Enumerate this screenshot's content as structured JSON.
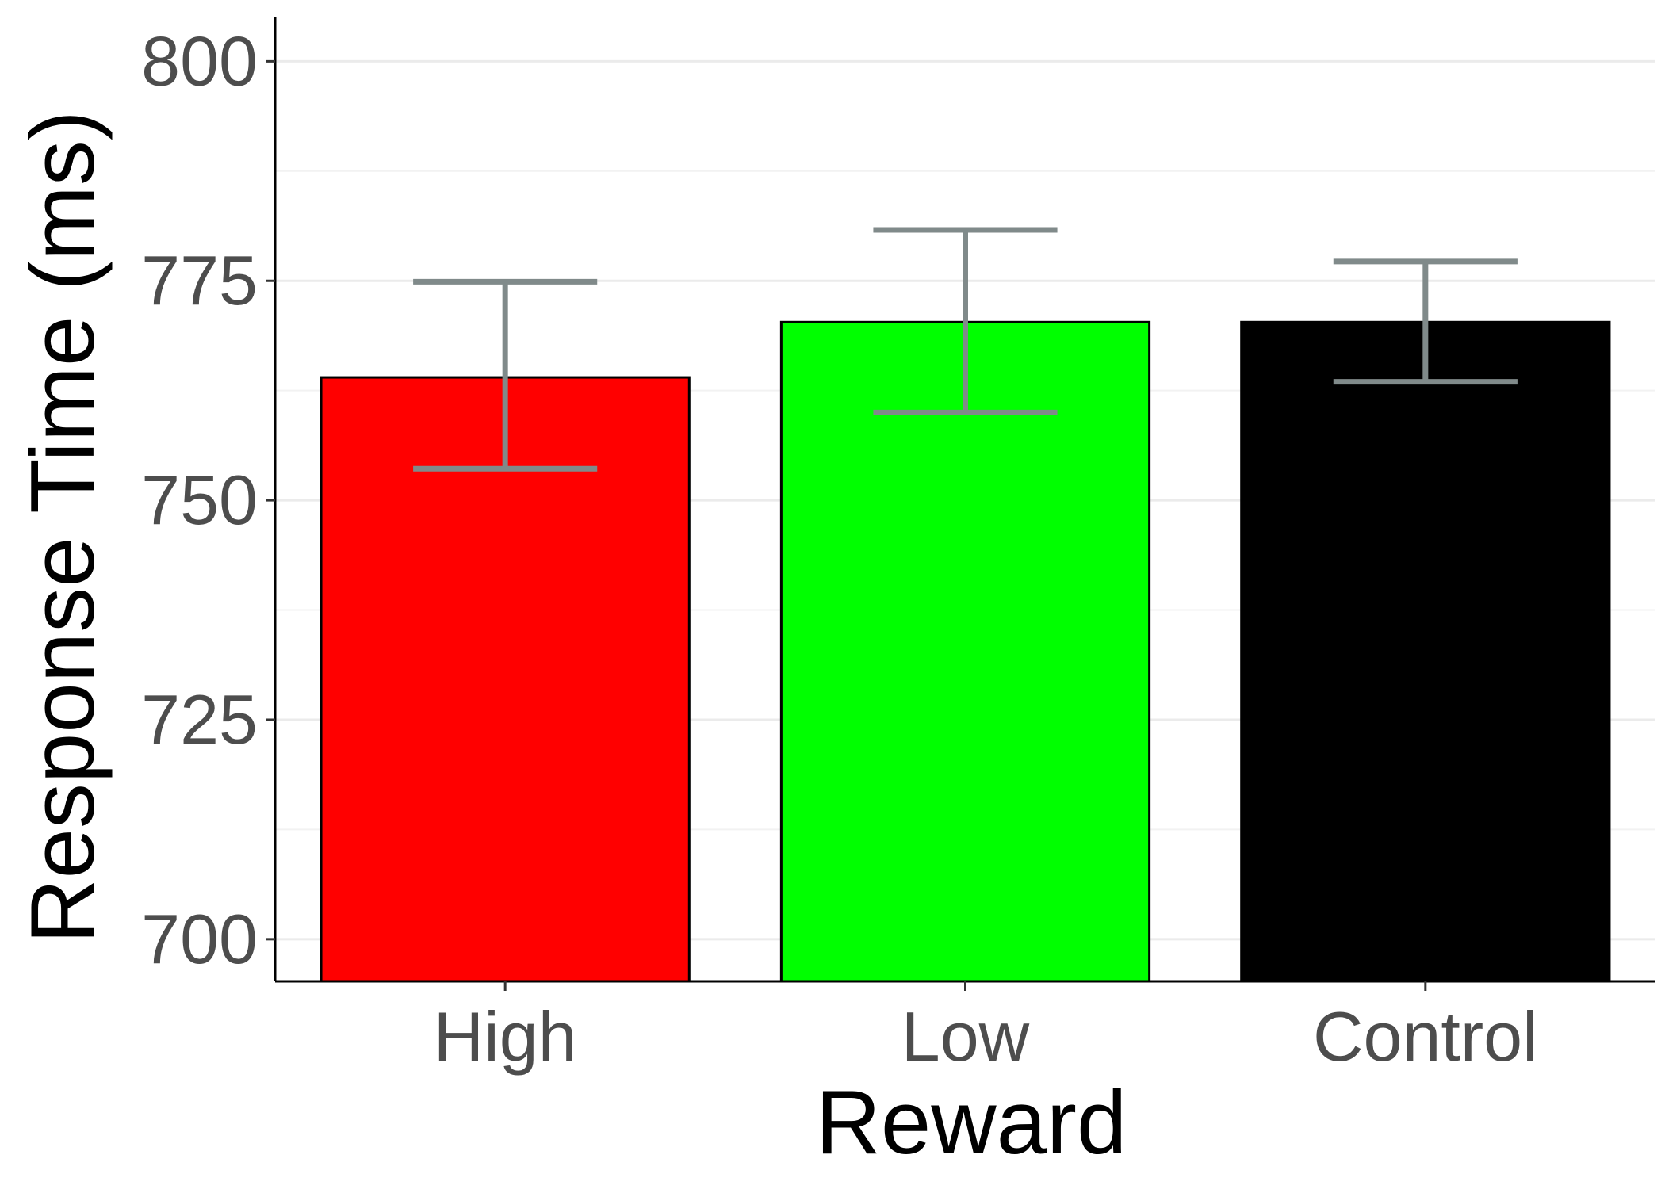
{
  "chart_data": {
    "type": "bar",
    "title": "",
    "xlabel": "Reward",
    "ylabel": "Response Time (ms)",
    "categories": [
      "High",
      "Low",
      "Control"
    ],
    "values": [
      764,
      770.3,
      770.3
    ],
    "error_bars": [
      {
        "low": 753.6,
        "high": 774.9
      },
      {
        "low": 760.0,
        "high": 780.8
      },
      {
        "low": 763.5,
        "high": 777.2
      }
    ],
    "bar_colors": [
      "#ff0000",
      "#00ff00",
      "#000000"
    ],
    "error_bar_color": "#808a8a",
    "ylim": [
      695.2,
      805
    ],
    "yticks": [
      700,
      725,
      750,
      775,
      800
    ],
    "ytick_labels": [
      "700",
      "725",
      "750",
      "775",
      "800"
    ],
    "grid": true,
    "legend": "none"
  }
}
